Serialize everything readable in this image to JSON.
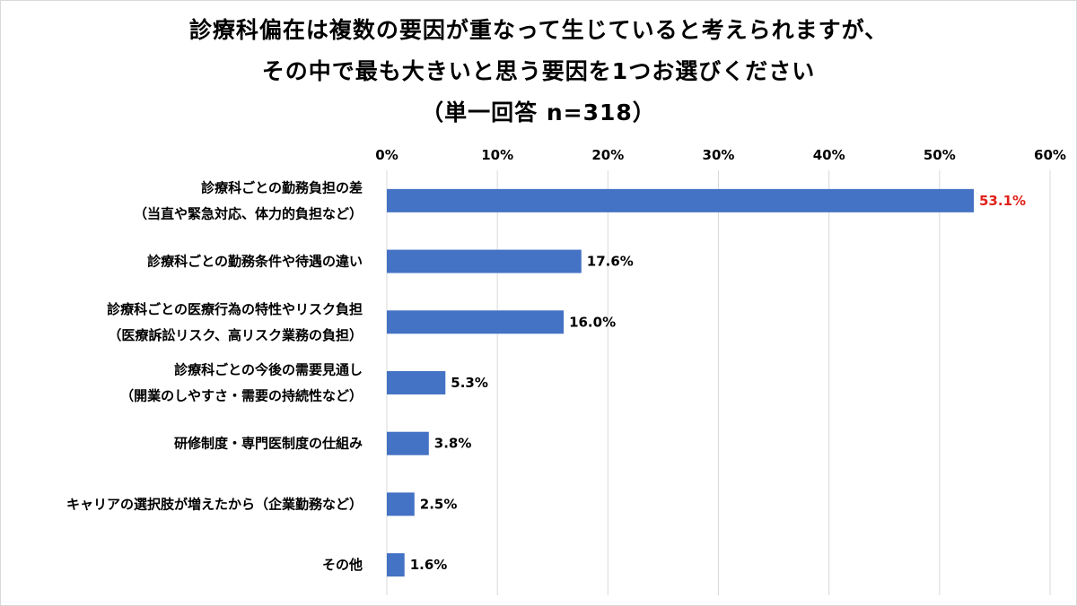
{
  "chart_data": {
    "type": "bar",
    "orientation": "horizontal",
    "title_lines": [
      "診療科偏在は複数の要因が重なって生じていると考えられますが、",
      "その中で最も大きいと思う要因を1つお選びください",
      "（単一回答 n=318）"
    ],
    "categories": [
      [
        "診療科ごとの勤務負担の差",
        "（当直や緊急対応、体力的負担など）"
      ],
      [
        "診療科ごとの勤務条件や待遇の違い"
      ],
      [
        "診療科ごとの医療行為の特性やリスク負担",
        "（医療訴訟リスク、高リスク業務の負担）"
      ],
      [
        "診療科ごとの今後の需要見通し",
        "（開業のしやすさ・需要の持続性など）"
      ],
      [
        "研修制度・専門医制度の仕組み"
      ],
      [
        "キャリアの選択肢が増えたから（企業勤務など）"
      ],
      [
        "その他"
      ]
    ],
    "values": [
      53.1,
      17.6,
      16.0,
      5.3,
      3.8,
      2.5,
      1.6
    ],
    "value_labels": [
      "53.1%",
      "17.6%",
      "16.0%",
      "5.3%",
      "3.8%",
      "2.5%",
      "1.6%"
    ],
    "highlight_index": 0,
    "xlim": [
      0,
      60
    ],
    "x_ticks": [
      0,
      10,
      20,
      30,
      40,
      50,
      60
    ],
    "x_tick_labels": [
      "0%",
      "10%",
      "20%",
      "30%",
      "40%",
      "50%",
      "60%"
    ],
    "x_axis_position": "top",
    "grid": true,
    "colors": {
      "bar": "#4472c4",
      "highlight_label": "#e0201a",
      "label": "#000000",
      "grid": "#d9d9d9"
    }
  }
}
